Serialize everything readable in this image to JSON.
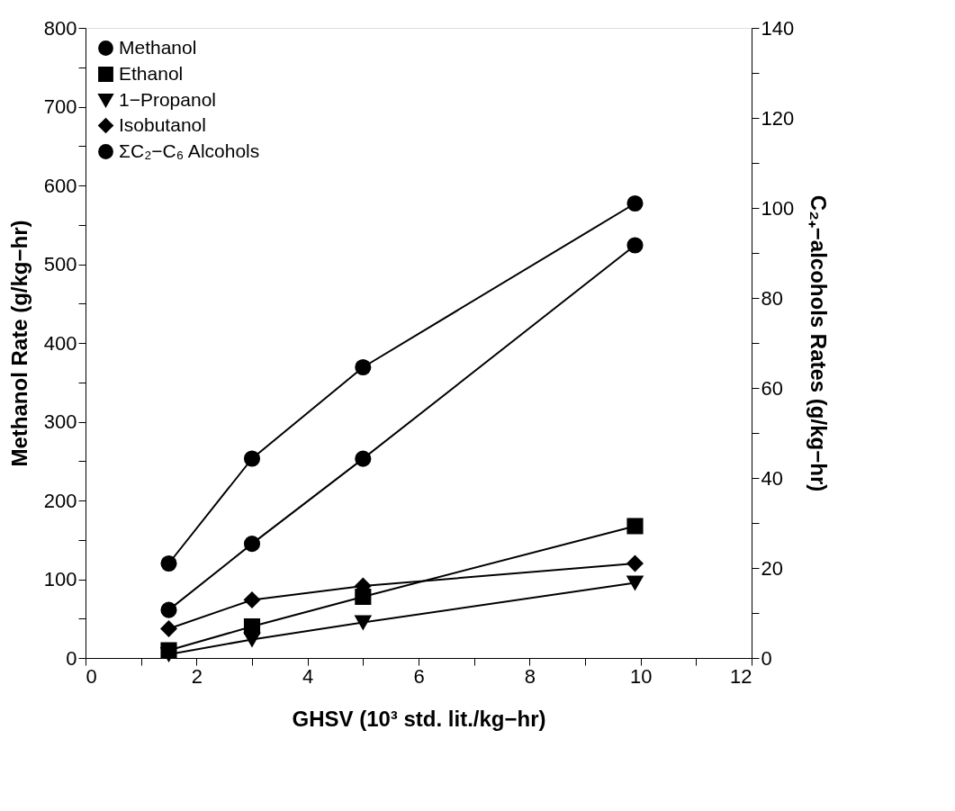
{
  "chart_data": {
    "type": "line",
    "xlabel": "GHSV (10³ std. lit./kg−hr)",
    "ylabel": "Methanol Rate (g/kg−hr)",
    "y2label": "C₂₊−alcohols Rates (g/kg−hr)",
    "xlim": [
      0,
      12
    ],
    "xticks": [
      0,
      {
        "value": 1,
        "label": null
      },
      2,
      {
        "value": 3,
        "label": null
      },
      4,
      {
        "value": 5,
        "label": null
      },
      6,
      {
        "value": 7,
        "label": null
      },
      8,
      {
        "value": 9,
        "label": null
      },
      10,
      {
        "value": 11,
        "label": null
      },
      12
    ],
    "ylim": [
      0,
      800
    ],
    "yticks": [
      0,
      {
        "value": 50,
        "label": null
      },
      100,
      {
        "value": 150,
        "label": null
      },
      200,
      {
        "value": 250,
        "label": null
      },
      300,
      {
        "value": 350,
        "label": null
      },
      400,
      {
        "value": 450,
        "label": null
      },
      500,
      {
        "value": 550,
        "label": null
      },
      600,
      {
        "value": 650,
        "label": null
      },
      700,
      {
        "value": 750,
        "label": null
      },
      800
    ],
    "y2lim": [
      0,
      140
    ],
    "y2ticks": [
      0,
      {
        "value": 10,
        "label": null
      },
      20,
      {
        "value": 30,
        "label": null
      },
      40,
      {
        "value": 50,
        "label": null
      },
      60,
      {
        "value": 70,
        "label": null
      },
      80,
      {
        "value": 90,
        "label": null
      },
      100,
      {
        "value": 110,
        "label": null
      },
      120,
      {
        "value": 130,
        "label": null
      },
      140
    ],
    "x": [
      1.5,
      3,
      5,
      9.9
    ],
    "legend": "top left",
    "line_style": "solid",
    "grid": false,
    "series": [
      {
        "name": "Methanol",
        "color": "#000000",
        "marker": "circle",
        "values": [
          61,
          145,
          253,
          524
        ]
      },
      {
        "name": "Ethanol",
        "color": "#000000",
        "marker": "square",
        "axis": "y2",
        "values": [
          1.7,
          7.0,
          13.6,
          29.3
        ]
      },
      {
        "name": "1−Propanol",
        "color": "#000000",
        "marker": "triangle",
        "axis": "y2",
        "values": [
          0.8,
          4.1,
          7.9,
          16.7
        ]
      },
      {
        "name": "Isobutanol",
        "color": "#000000",
        "marker": "diamond",
        "axis": "y2",
        "values": [
          6.5,
          12.9,
          16.0,
          21.0
        ]
      },
      {
        "name": "ΣC₂−C₆ Alcohols",
        "color": "#000000",
        "marker": "circle",
        "axis": "y2",
        "values": [
          21.0,
          44.3,
          64.6,
          101
        ]
      }
    ]
  }
}
